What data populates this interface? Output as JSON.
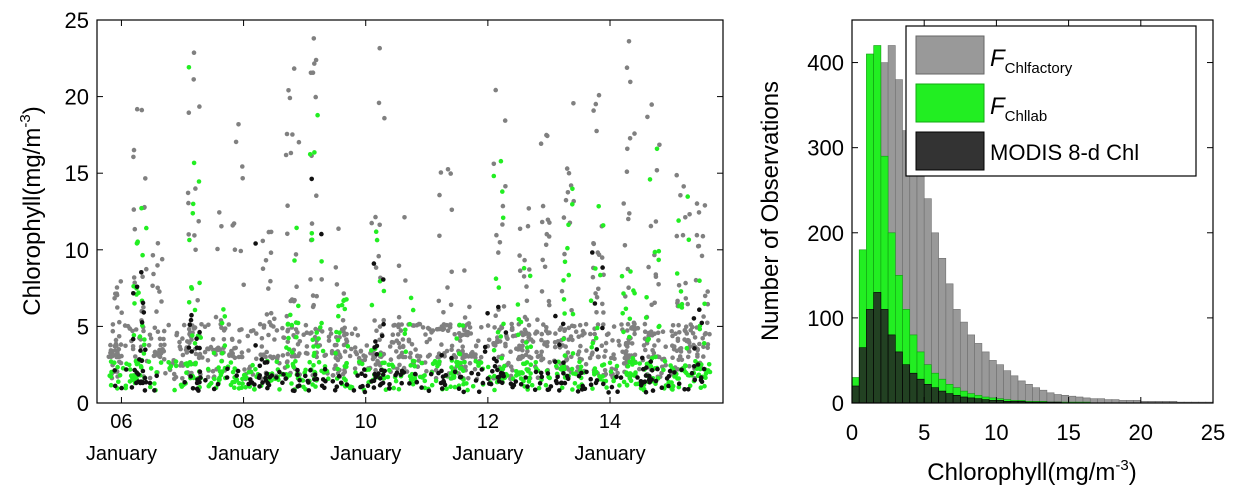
{
  "chart_data": [
    {
      "type": "scatter",
      "ylabel": "Chlorophyll(mg/m",
      "ylabel_sup": "-3",
      "ylabel_close": ")",
      "ylim": [
        0,
        25
      ],
      "yticks": [
        0,
        5,
        10,
        15,
        20,
        25
      ],
      "xlim": [
        2005.6,
        2015.85
      ],
      "xticks": [
        {
          "x": 2006,
          "label_top": "06",
          "label_bottom": "January"
        },
        {
          "x": 2008,
          "label_top": "08",
          "label_bottom": "January"
        },
        {
          "x": 2010,
          "label_top": "10",
          "label_bottom": "January"
        },
        {
          "x": 2012,
          "label_top": "12",
          "label_bottom": "January"
        },
        {
          "x": 2014,
          "label_top": "14",
          "label_bottom": "January"
        }
      ],
      "series": [
        {
          "color": "#808080",
          "blooms": [
            [
              2005.9,
              8
            ],
            [
              2006.3,
              22
            ],
            [
              2006.6,
              12
            ],
            [
              2007.2,
              23
            ],
            [
              2007.6,
              15
            ],
            [
              2007.9,
              19
            ],
            [
              2008.4,
              12
            ],
            [
              2008.8,
              22
            ],
            [
              2009.2,
              24
            ],
            [
              2009.6,
              19
            ],
            [
              2010.2,
              24
            ],
            [
              2010.6,
              14
            ],
            [
              2011.3,
              16
            ],
            [
              2011.7,
              12
            ],
            [
              2012.2,
              23
            ],
            [
              2012.6,
              14
            ],
            [
              2012.9,
              18
            ],
            [
              2013.3,
              22
            ],
            [
              2013.8,
              21
            ],
            [
              2014.3,
              24
            ],
            [
              2014.7,
              25
            ],
            [
              2015.2,
              16
            ],
            [
              2015.5,
              14
            ]
          ],
          "baseline": 3.0
        },
        {
          "color": "#22ee22",
          "blooms": [
            [
              2006.3,
              14
            ],
            [
              2007.2,
              22
            ],
            [
              2007.6,
              8
            ],
            [
              2008.8,
              12
            ],
            [
              2009.2,
              22
            ],
            [
              2009.6,
              10
            ],
            [
              2010.2,
              12
            ],
            [
              2010.7,
              8
            ],
            [
              2011.5,
              6
            ],
            [
              2012.2,
              17
            ],
            [
              2012.6,
              9
            ],
            [
              2013.3,
              14
            ],
            [
              2013.8,
              13
            ],
            [
              2014.3,
              10
            ],
            [
              2014.7,
              22
            ],
            [
              2015.2,
              14
            ],
            [
              2015.5,
              8
            ]
          ],
          "baseline": 1.6
        },
        {
          "color": "#111111",
          "blooms": [
            [
              2006.3,
              11
            ],
            [
              2007.2,
              10
            ],
            [
              2008.3,
              13
            ],
            [
              2009.2,
              16
            ],
            [
              2010.2,
              11
            ],
            [
              2011.3,
              4
            ],
            [
              2011.9,
              8
            ],
            [
              2012.2,
              9
            ],
            [
              2013.2,
              6
            ],
            [
              2013.8,
              15
            ],
            [
              2014.6,
              3
            ],
            [
              2015.4,
              7
            ]
          ],
          "baseline": 1.3
        }
      ]
    },
    {
      "type": "bar",
      "xlabel": "Chlorophyll(mg/m",
      "xlabel_sup": "-3",
      "xlabel_close": ")",
      "ylabel": "Number of Observations",
      "xlim": [
        0,
        25
      ],
      "ylim": [
        0,
        450
      ],
      "xticks": [
        0,
        5,
        10,
        15,
        20,
        25
      ],
      "yticks": [
        0,
        100,
        200,
        300,
        400
      ],
      "bin_width": 0.5,
      "series": [
        {
          "label_main": "F",
          "label_sub": "Chlfactory",
          "color": "#999999",
          "values": [
            5,
            30,
            130,
            300,
            400,
            420,
            380,
            320,
            295,
            270,
            240,
            200,
            170,
            140,
            110,
            95,
            80,
            70,
            60,
            50,
            45,
            38,
            32,
            26,
            22,
            18,
            15,
            12,
            10,
            9,
            8,
            7,
            6,
            5,
            5,
            4,
            4,
            3,
            3,
            3,
            2,
            2,
            2,
            2,
            2,
            1,
            1,
            1,
            1,
            1
          ]
        },
        {
          "label_main": "F",
          "label_sub": "Chllab",
          "color": "#22ee22",
          "values": [
            30,
            180,
            410,
            420,
            290,
            200,
            150,
            110,
            80,
            60,
            45,
            35,
            28,
            22,
            18,
            14,
            11,
            9,
            7,
            6,
            5,
            4,
            3,
            3,
            2,
            2,
            2,
            1,
            1,
            1,
            1,
            1,
            1,
            0,
            0,
            0,
            0,
            0,
            0,
            0,
            0,
            0,
            0,
            0,
            0,
            0,
            0,
            0,
            0,
            0
          ]
        },
        {
          "label_main": "MODIS 8-d Chl",
          "label_sub": "",
          "color": "#222222",
          "values": [
            20,
            65,
            110,
            130,
            110,
            80,
            60,
            45,
            35,
            28,
            22,
            18,
            14,
            11,
            9,
            7,
            6,
            5,
            4,
            3,
            3,
            2,
            2,
            2,
            1,
            1,
            1,
            1,
            1,
            0,
            0,
            0,
            0,
            0,
            0,
            0,
            0,
            0,
            0,
            0,
            0,
            0,
            0,
            0,
            0,
            0,
            0,
            0,
            0,
            0
          ]
        }
      ],
      "legend_position": "top-right"
    }
  ]
}
